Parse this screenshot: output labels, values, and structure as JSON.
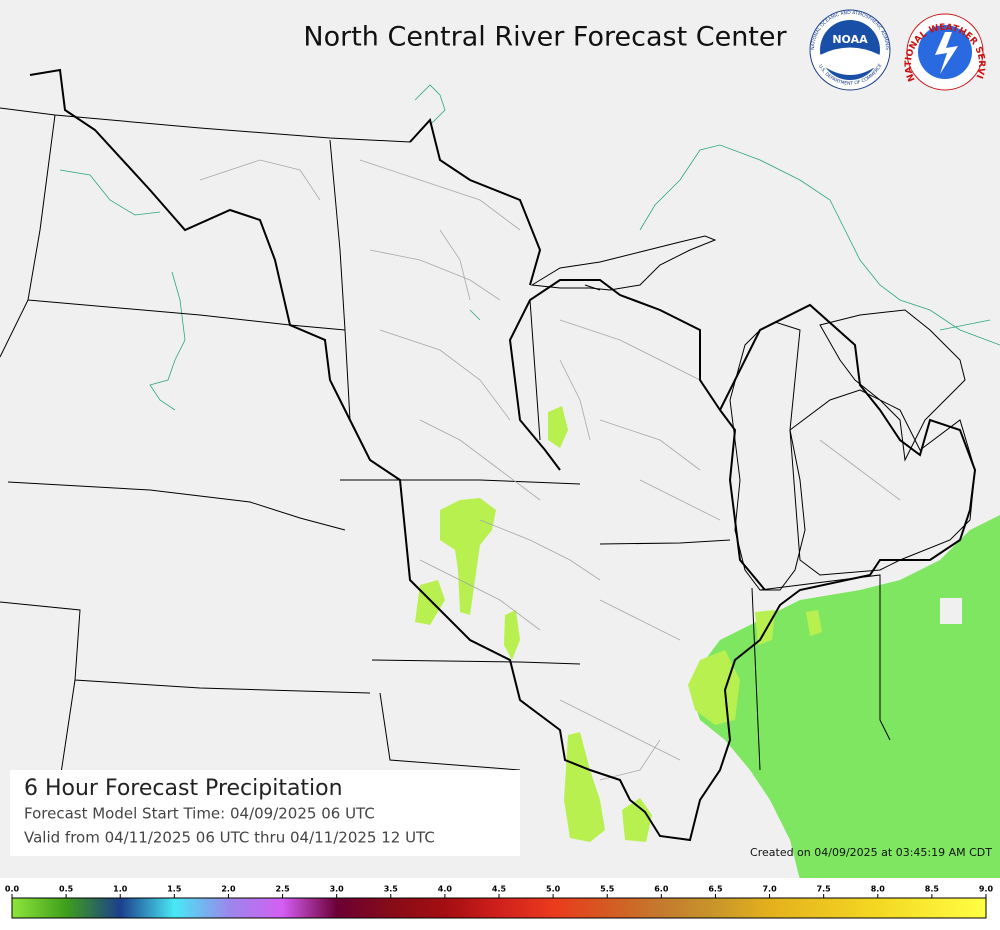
{
  "header": {
    "title": "North Central River Forecast Center"
  },
  "logos": {
    "noaa": {
      "name": "NOAA",
      "ring_top": "NATIONAL OCEANIC AND ATMOSPHERIC ADMINISTRATION",
      "ring_bottom": "U.S. DEPARTMENT OF COMMERCE"
    },
    "nws": {
      "ring": "NATIONAL WEATHER SERVICE"
    }
  },
  "info": {
    "title": "6 Hour Forecast Precipitation",
    "model_start": "Forecast Model Start Time:  04/09/2025 06 UTC",
    "valid": "Valid from 04/11/2025 06 UTC thru 04/11/2025 12 UTC"
  },
  "created": "Created on 04/09/2025 at 03:45:19 AM CDT",
  "colorbar": {
    "range": [
      0,
      9
    ],
    "ticks": [
      {
        "value": 0,
        "label": "0.0"
      },
      {
        "value": 0.5,
        "label": "0.5"
      },
      {
        "value": 1,
        "label": "1.0"
      },
      {
        "value": 1.5,
        "label": "1.5"
      },
      {
        "value": 2,
        "label": "2.0"
      },
      {
        "value": 2.5,
        "label": "2.5"
      },
      {
        "value": 3,
        "label": "3.0"
      },
      {
        "value": 3.5,
        "label": "3.5"
      },
      {
        "value": 4,
        "label": "4.0"
      },
      {
        "value": 4.5,
        "label": "4.5"
      },
      {
        "value": 5,
        "label": "5.0"
      },
      {
        "value": 5.5,
        "label": "5.5"
      },
      {
        "value": 6,
        "label": "6.0"
      },
      {
        "value": 6.5,
        "label": "6.5"
      },
      {
        "value": 7,
        "label": "7.0"
      },
      {
        "value": 7.5,
        "label": "7.5"
      },
      {
        "value": 8,
        "label": "8.0"
      },
      {
        "value": 8.5,
        "label": "8.5"
      },
      {
        "value": 9,
        "label": "9.0"
      }
    ],
    "stops": [
      {
        "value": 0,
        "color": "#8ee63a"
      },
      {
        "value": 0.5,
        "color": "#3f9e1c"
      },
      {
        "value": 1,
        "color": "#1c3f8c"
      },
      {
        "value": 1.5,
        "color": "#48e8f4"
      },
      {
        "value": 2,
        "color": "#9a88ec"
      },
      {
        "value": 2.5,
        "color": "#d45ef2"
      },
      {
        "value": 3,
        "color": "#6c0036"
      },
      {
        "value": 3.5,
        "color": "#860c18"
      },
      {
        "value": 4,
        "color": "#a40e12"
      },
      {
        "value": 4.5,
        "color": "#d0201c"
      },
      {
        "value": 5,
        "color": "#ec3a1c"
      },
      {
        "value": 5.5,
        "color": "#d45a22"
      },
      {
        "value": 6,
        "color": "#c47a2e"
      },
      {
        "value": 6.5,
        "color": "#c8962a"
      },
      {
        "value": 7,
        "color": "#e4b01e"
      },
      {
        "value": 8,
        "color": "#f4d822"
      },
      {
        "value": 9,
        "color": "#ffff44"
      }
    ]
  }
}
